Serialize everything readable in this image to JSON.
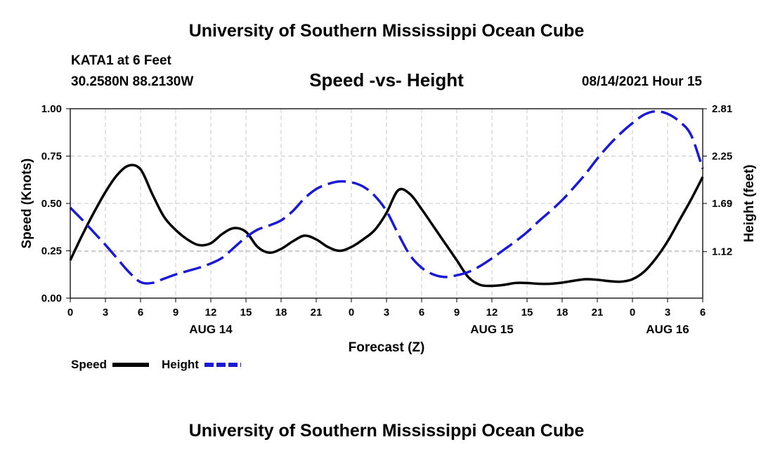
{
  "header": {
    "title_top": "University of Southern Mississippi Ocean Cube",
    "station": "KATA1 at 6 Feet",
    "coords": "30.2580N  88.2130W",
    "subtitle": "Speed -vs- Height",
    "datetime": "08/14/2021 Hour 15",
    "title_bottom": "University of Southern Mississippi Ocean Cube"
  },
  "legend": {
    "speed_label": "Speed",
    "height_label": "Height"
  },
  "colors": {
    "speed": "#000000",
    "height": "#1a1ad6",
    "grid": "#c8c8c8"
  },
  "chart_data": {
    "type": "line",
    "title": "Speed -vs- Height",
    "xlabel": "Forecast (Z)",
    "ylabel": "Speed (Knots)",
    "ylabel_right": "Height (feet)",
    "xlim": [
      0,
      54
    ],
    "ylim": [
      0,
      1
    ],
    "ylim_right": [
      0.57,
      2.81
    ],
    "grid": true,
    "x_tick_positions": [
      0,
      3,
      6,
      9,
      12,
      15,
      18,
      21,
      24,
      27,
      30,
      33,
      36,
      39,
      42,
      45,
      48,
      51,
      54
    ],
    "x_tick_labels": [
      "0",
      "3",
      "6",
      "9",
      "12",
      "15",
      "18",
      "21",
      "0",
      "3",
      "6",
      "9",
      "12",
      "15",
      "18",
      "21",
      "0",
      "3",
      "6"
    ],
    "date_labels": [
      {
        "x": 12,
        "label": "AUG 14"
      },
      {
        "x": 36,
        "label": "AUG 15"
      },
      {
        "x": 51,
        "label": "AUG 16"
      }
    ],
    "y_ticks": [
      {
        "value": 0.0,
        "label": "0.00"
      },
      {
        "value": 0.25,
        "label": "0.25"
      },
      {
        "value": 0.5,
        "label": "0.50"
      },
      {
        "value": 0.75,
        "label": "0.75"
      },
      {
        "value": 1.0,
        "label": "1.00"
      }
    ],
    "y_ticks_right": [
      {
        "value": 1.12,
        "label": "1.12"
      },
      {
        "value": 1.69,
        "label": "1.69"
      },
      {
        "value": 2.25,
        "label": "2.25"
      },
      {
        "value": 2.81,
        "label": "2.81"
      }
    ],
    "series": [
      {
        "name": "Speed",
        "axis": "left",
        "style": "solid",
        "x": [
          0,
          1,
          2,
          3,
          4,
          5,
          6,
          7,
          8,
          9,
          10,
          11,
          12,
          13,
          14,
          15,
          16,
          17,
          18,
          19,
          20,
          21,
          22,
          23,
          24,
          25,
          26,
          27,
          28,
          29,
          30,
          31,
          32,
          33,
          34,
          35,
          36,
          37,
          38,
          39,
          40,
          41,
          42,
          43,
          44,
          45,
          46,
          47,
          48,
          49,
          50,
          51,
          52,
          53,
          54
        ],
        "values": [
          0.2,
          0.33,
          0.45,
          0.56,
          0.65,
          0.7,
          0.68,
          0.55,
          0.43,
          0.36,
          0.31,
          0.28,
          0.29,
          0.34,
          0.37,
          0.35,
          0.27,
          0.24,
          0.26,
          0.3,
          0.33,
          0.31,
          0.27,
          0.25,
          0.27,
          0.31,
          0.36,
          0.45,
          0.57,
          0.55,
          0.47,
          0.38,
          0.29,
          0.2,
          0.11,
          0.07,
          0.065,
          0.07,
          0.08,
          0.08,
          0.076,
          0.076,
          0.082,
          0.092,
          0.1,
          0.097,
          0.09,
          0.087,
          0.1,
          0.14,
          0.21,
          0.3,
          0.41,
          0.52,
          0.64
        ]
      },
      {
        "name": "Height",
        "axis": "right",
        "style": "dashed",
        "x": [
          0,
          1,
          2,
          3,
          4,
          5,
          6,
          7,
          8,
          9,
          10,
          11,
          12,
          13,
          14,
          15,
          16,
          17,
          18,
          19,
          20,
          21,
          22,
          23,
          24,
          25,
          26,
          27,
          28,
          29,
          30,
          31,
          32,
          33,
          34,
          35,
          36,
          37,
          38,
          39,
          40,
          41,
          42,
          43,
          44,
          45,
          46,
          47,
          48,
          49,
          50,
          51,
          52,
          53,
          54
        ],
        "values": [
          1.64,
          1.5,
          1.35,
          1.2,
          1.04,
          0.88,
          0.76,
          0.75,
          0.8,
          0.85,
          0.89,
          0.93,
          0.98,
          1.05,
          1.17,
          1.29,
          1.38,
          1.43,
          1.49,
          1.6,
          1.75,
          1.86,
          1.92,
          1.95,
          1.94,
          1.89,
          1.78,
          1.6,
          1.33,
          1.08,
          0.93,
          0.85,
          0.82,
          0.84,
          0.88,
          0.95,
          1.04,
          1.14,
          1.24,
          1.35,
          1.48,
          1.6,
          1.73,
          1.88,
          2.04,
          2.22,
          2.38,
          2.52,
          2.64,
          2.74,
          2.78,
          2.75,
          2.66,
          2.5,
          2.1
        ]
      }
    ]
  }
}
